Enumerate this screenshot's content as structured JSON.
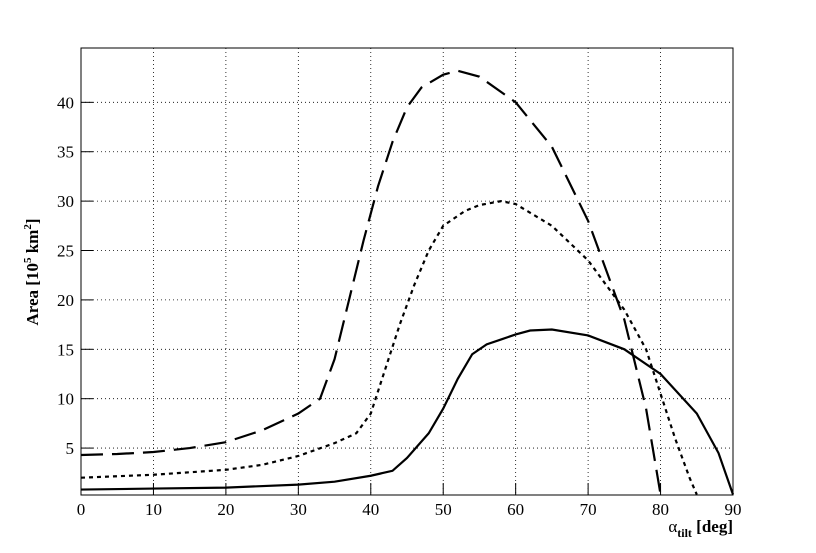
{
  "chart_data": {
    "type": "line",
    "xlabel": [
      "α",
      "tilt",
      " [deg]"
    ],
    "ylabel": [
      "Area [10",
      "5",
      " km",
      "2",
      "]"
    ],
    "xlim": [
      0,
      90
    ],
    "xticks": [
      0,
      10,
      20,
      30,
      40,
      50,
      60,
      70,
      80,
      90
    ],
    "ylim": [
      0.25,
      45.5
    ],
    "yticks": [
      5,
      10,
      15,
      20,
      25,
      30,
      35,
      40
    ],
    "grid": true,
    "series": [
      {
        "color": "#000000",
        "dash": "long",
        "x": [
          0,
          5,
          10,
          15,
          20,
          25,
          30,
          33,
          35,
          37,
          39,
          41,
          43,
          45,
          47,
          50,
          52,
          55,
          60,
          65,
          70,
          75,
          78,
          80
        ],
        "values": [
          4.3,
          4.4,
          4.6,
          5.0,
          5.6,
          6.8,
          8.5,
          10,
          14,
          20,
          26,
          31.5,
          36,
          39.5,
          41.5,
          42.8,
          43.2,
          42.6,
          40,
          35.5,
          28,
          18,
          9,
          0.3
        ]
      },
      {
        "color": "#000000",
        "dash": "short",
        "x": [
          0,
          10,
          20,
          25,
          30,
          35,
          38,
          40,
          42,
          44,
          46,
          48,
          50,
          53,
          55,
          58,
          60,
          65,
          70,
          75,
          78,
          80,
          82,
          84,
          85
        ],
        "values": [
          2,
          2.3,
          2.8,
          3.3,
          4.2,
          5.5,
          6.5,
          8.5,
          13,
          17.5,
          21.5,
          25,
          27.5,
          29,
          29.6,
          30,
          29.7,
          27.5,
          24,
          19,
          15,
          10.5,
          6,
          2,
          0.3
        ]
      },
      {
        "color": "#000000",
        "dash": "solid",
        "x": [
          0,
          10,
          20,
          30,
          35,
          40,
          43,
          45,
          48,
          50,
          52,
          54,
          56,
          58,
          60,
          62,
          65,
          70,
          75,
          80,
          85,
          88,
          90
        ],
        "values": [
          0.8,
          0.9,
          1.0,
          1.3,
          1.6,
          2.2,
          2.7,
          4,
          6.5,
          9,
          12,
          14.5,
          15.5,
          16,
          16.5,
          16.9,
          17,
          16.4,
          15,
          12.5,
          8.5,
          4.5,
          0.3
        ]
      }
    ]
  }
}
